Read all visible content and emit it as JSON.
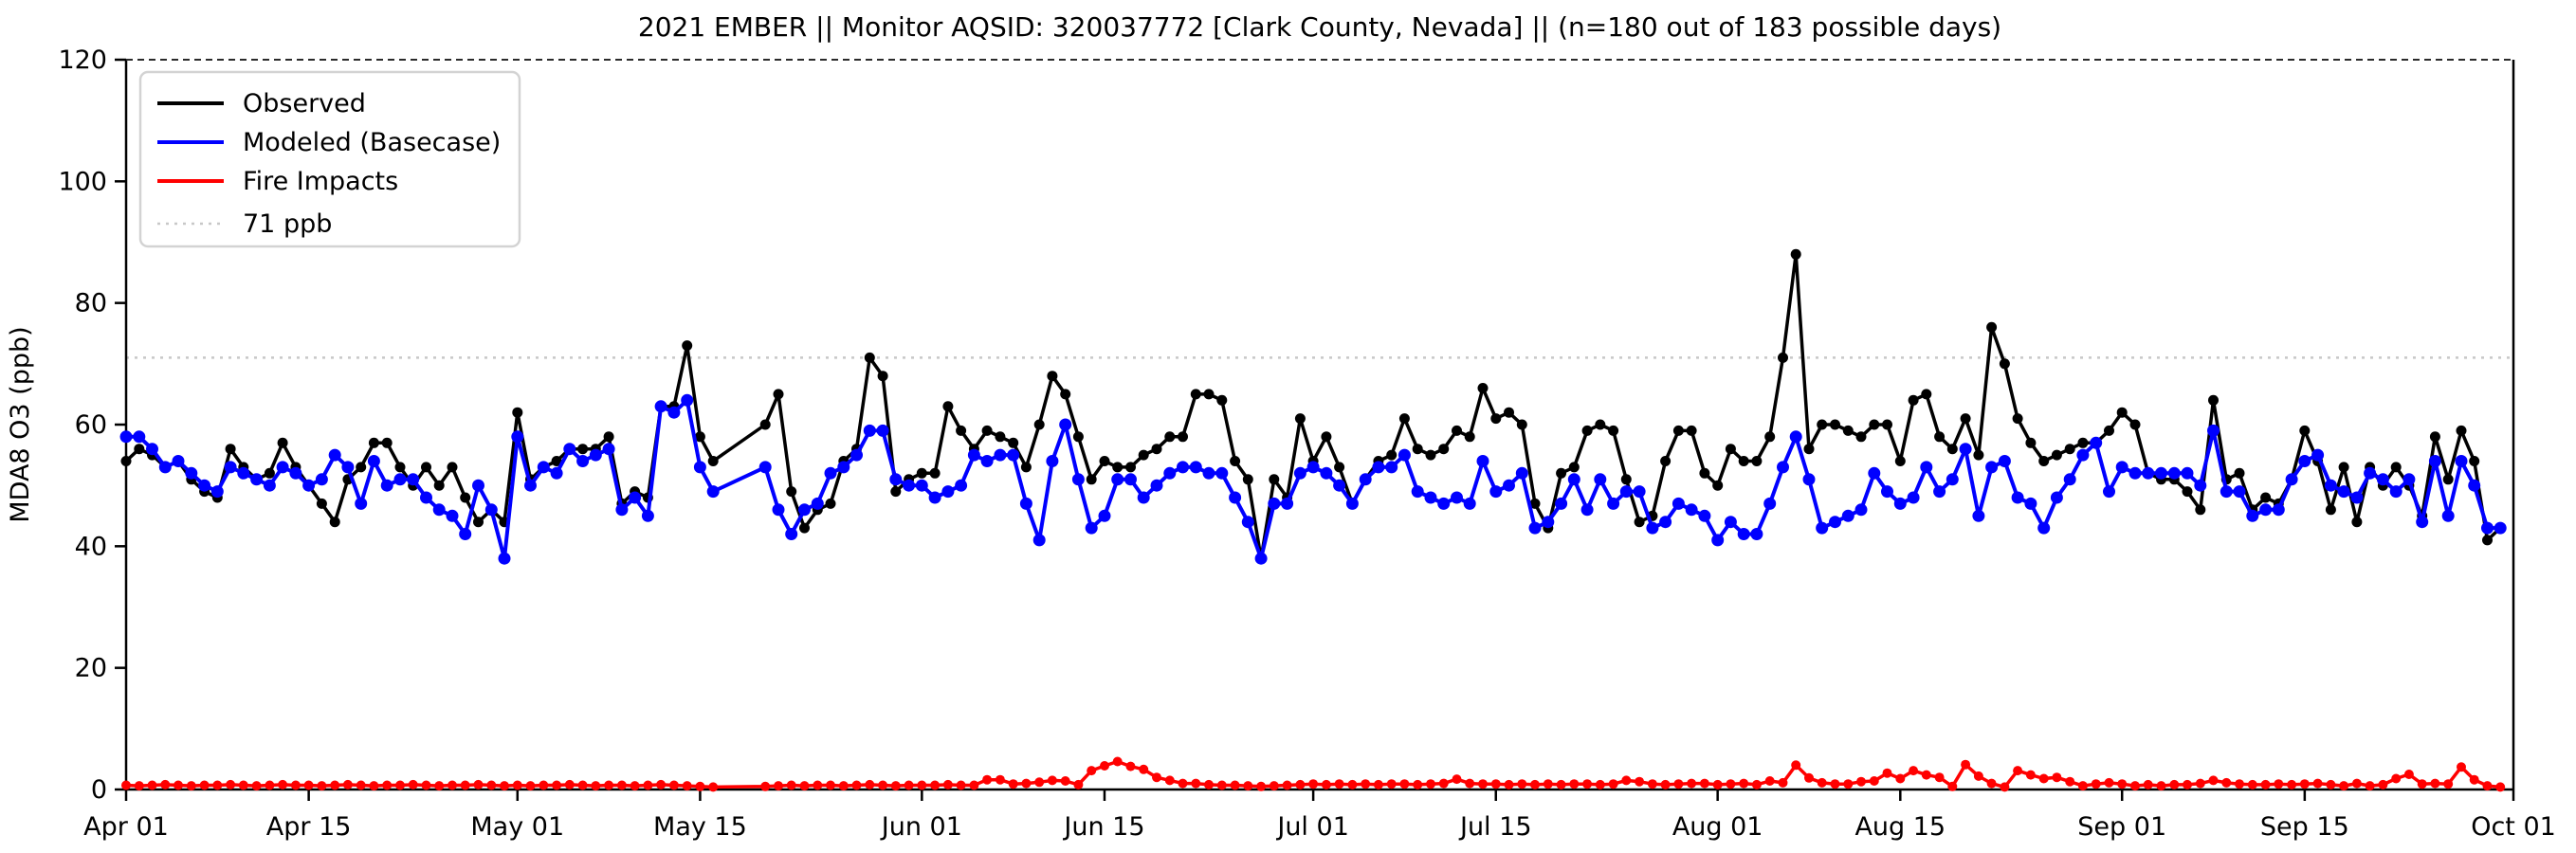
{
  "chart": {
    "title": "2021 EMBER || Monitor AQSID: 320037772 [Clark County, Nevada] || (n=180 out of 183 possible days)",
    "ylabel": "MDA8 O3 (ppb)",
    "legend": [
      {
        "label": "Observed",
        "color": "#000000",
        "style": "solid"
      },
      {
        "label": "Modeled (Basecase)",
        "color": "#0000ff",
        "style": "solid"
      },
      {
        "label": "Fire Impacts",
        "color": "#ff0000",
        "style": "solid"
      },
      {
        "label": "71 ppb",
        "color": "#c8c8c8",
        "style": "dotted"
      }
    ],
    "colors": {
      "observed": "#000000",
      "modeled": "#0000ff",
      "fire": "#ff0000",
      "threshold_line": "#c8c8c8",
      "top_border_dashed": "#2b2b2b",
      "legend_border": "#d3d3d3"
    },
    "yticks": [
      "0",
      "20",
      "40",
      "60",
      "80",
      "100",
      "120"
    ],
    "xtick_labels": [
      "Apr 01",
      "Apr 15",
      "May 01",
      "May 15",
      "Jun 01",
      "Jun 15",
      "Jul 01",
      "Jul 15",
      "Aug 01",
      "Aug 15",
      "Sep 01",
      "Sep 15",
      "Oct 01"
    ]
  },
  "chart_data": {
    "type": "line",
    "title": "2021 EMBER || Monitor AQSID: 320037772 [Clark County, Nevada] || (n=180 out of 183 possible days)",
    "xlabel": "",
    "ylabel": "MDA8 O3 (ppb)",
    "ylim": [
      0,
      120
    ],
    "yticks": [
      0,
      20,
      40,
      60,
      80,
      100,
      120
    ],
    "grid": false,
    "legend_position": "upper left",
    "x_daily_from": "2021-04-01",
    "n_days": 183,
    "n_observed_days": 180,
    "missing_dates": [
      "2021-05-17",
      "2021-05-18",
      "2021-05-19"
    ],
    "threshold_ppb": 71,
    "xticks": [
      {
        "label": "Apr 01",
        "day": 0
      },
      {
        "label": "Apr 15",
        "day": 14
      },
      {
        "label": "May 01",
        "day": 30
      },
      {
        "label": "May 15",
        "day": 44
      },
      {
        "label": "Jun 01",
        "day": 61
      },
      {
        "label": "Jun 15",
        "day": 75
      },
      {
        "label": "Jul 01",
        "day": 91
      },
      {
        "label": "Jul 15",
        "day": 105
      },
      {
        "label": "Aug 01",
        "day": 122
      },
      {
        "label": "Aug 15",
        "day": 136
      },
      {
        "label": "Sep 01",
        "day": 153
      },
      {
        "label": "Sep 15",
        "day": 167
      },
      {
        "label": "Oct 01",
        "day": 183
      }
    ],
    "series": [
      {
        "name": "Observed",
        "color": "#000000",
        "marker_radius": 5.5,
        "line_width": 3.5,
        "values": [
          54,
          56,
          55,
          53,
          54,
          51,
          49,
          48,
          56,
          53,
          51,
          52,
          57,
          53,
          50,
          47,
          44,
          51,
          53,
          57,
          57,
          53,
          50,
          53,
          50,
          53,
          48,
          44,
          46,
          44,
          62,
          51,
          53,
          54,
          56,
          56,
          56,
          58,
          47,
          49,
          48,
          63,
          63,
          73,
          58,
          54,
          null,
          null,
          null,
          60,
          65,
          49,
          43,
          46,
          47,
          54,
          56,
          71,
          68,
          49,
          51,
          52,
          52,
          63,
          59,
          56,
          59,
          58,
          57,
          53,
          60,
          68,
          65,
          58,
          51,
          54,
          53,
          53,
          55,
          56,
          58,
          58,
          65,
          65,
          64,
          54,
          51,
          38,
          51,
          48,
          61,
          54,
          58,
          53,
          47,
          51,
          54,
          55,
          61,
          56,
          55,
          56,
          59,
          58,
          66,
          61,
          62,
          60,
          47,
          43,
          52,
          53,
          59,
          60,
          59,
          51,
          44,
          45,
          54,
          59,
          59,
          52,
          50,
          56,
          54,
          54,
          58,
          71,
          88,
          56,
          60,
          60,
          59,
          58,
          60,
          60,
          54,
          64,
          65,
          58,
          56,
          61,
          55,
          76,
          70,
          61,
          57,
          54,
          55,
          56,
          57,
          57,
          59,
          62,
          60,
          52,
          51,
          51,
          49,
          46,
          64,
          51,
          52,
          46,
          48,
          47,
          51,
          59,
          54,
          46,
          53,
          44,
          53,
          50,
          53,
          50,
          45,
          58,
          51,
          59,
          54,
          41,
          43
        ]
      },
      {
        "name": "Modeled (Basecase)",
        "color": "#0000ff",
        "marker_radius": 6.5,
        "line_width": 4,
        "values": [
          58,
          58,
          56,
          53,
          54,
          52,
          50,
          49,
          53,
          52,
          51,
          50,
          53,
          52,
          50,
          51,
          55,
          53,
          47,
          54,
          50,
          51,
          51,
          48,
          46,
          45,
          42,
          50,
          46,
          38,
          58,
          50,
          53,
          52,
          56,
          54,
          55,
          56,
          46,
          48,
          45,
          63,
          62,
          64,
          53,
          49,
          null,
          null,
          null,
          53,
          46,
          42,
          46,
          47,
          52,
          53,
          55,
          59,
          59,
          51,
          50,
          50,
          48,
          49,
          50,
          55,
          54,
          55,
          55,
          47,
          41,
          54,
          60,
          51,
          43,
          45,
          51,
          51,
          48,
          50,
          52,
          53,
          53,
          52,
          52,
          48,
          44,
          38,
          47,
          47,
          52,
          53,
          52,
          50,
          47,
          51,
          53,
          53,
          55,
          49,
          48,
          47,
          48,
          47,
          54,
          49,
          50,
          52,
          43,
          44,
          47,
          51,
          46,
          51,
          47,
          49,
          49,
          43,
          44,
          47,
          46,
          45,
          41,
          44,
          42,
          42,
          47,
          53,
          58,
          51,
          43,
          44,
          45,
          46,
          52,
          49,
          47,
          48,
          53,
          49,
          51,
          56,
          45,
          53,
          54,
          48,
          47,
          43,
          48,
          51,
          55,
          57,
          49,
          53,
          52,
          52,
          52,
          52,
          52,
          50,
          59,
          49,
          49,
          45,
          46,
          46,
          51,
          54,
          55,
          50,
          49,
          48,
          52,
          51,
          49,
          51,
          44,
          54,
          45,
          54,
          50,
          43,
          43
        ]
      },
      {
        "name": "Fire Impacts",
        "color": "#ff0000",
        "marker_radius": 5,
        "line_width": 3.5,
        "values": [
          0.7,
          0.6,
          0.7,
          0.8,
          0.7,
          0.6,
          0.7,
          0.7,
          0.8,
          0.7,
          0.6,
          0.7,
          0.8,
          0.7,
          0.7,
          0.6,
          0.7,
          0.8,
          0.7,
          0.6,
          0.7,
          0.7,
          0.8,
          0.7,
          0.6,
          0.7,
          0.7,
          0.8,
          0.7,
          0.6,
          0.7,
          0.6,
          0.7,
          0.7,
          0.8,
          0.7,
          0.6,
          0.7,
          0.7,
          0.6,
          0.7,
          0.8,
          0.7,
          0.6,
          0.5,
          0.4,
          null,
          null,
          null,
          0.5,
          0.6,
          0.7,
          0.6,
          0.7,
          0.7,
          0.6,
          0.7,
          0.8,
          0.7,
          0.6,
          0.7,
          0.7,
          0.7,
          0.8,
          0.7,
          0.7,
          1.6,
          1.6,
          0.9,
          1.0,
          1.2,
          1.5,
          1.4,
          0.8,
          3.1,
          3.9,
          4.6,
          3.8,
          3.3,
          2.0,
          1.5,
          1.0,
          1.0,
          0.8,
          0.7,
          0.7,
          0.6,
          0.5,
          0.6,
          0.7,
          0.8,
          0.9,
          0.8,
          0.9,
          0.8,
          0.9,
          0.8,
          0.9,
          0.9,
          0.8,
          0.9,
          1.0,
          1.7,
          1.0,
          0.9,
          0.9,
          0.8,
          0.9,
          0.8,
          0.9,
          0.8,
          0.9,
          0.9,
          0.8,
          0.9,
          1.5,
          1.3,
          0.9,
          0.8,
          0.9,
          1.0,
          1.0,
          0.8,
          0.9,
          1.0,
          0.8,
          1.4,
          1.1,
          4.0,
          1.9,
          1.1,
          0.9,
          0.9,
          1.3,
          1.4,
          2.7,
          1.8,
          3.1,
          2.4,
          2.0,
          0.5,
          4.1,
          2.2,
          1.0,
          0.4,
          3.1,
          2.4,
          1.8,
          2.0,
          1.3,
          0.6,
          0.9,
          1.1,
          0.9,
          0.6,
          0.8,
          0.6,
          0.8,
          0.8,
          1.0,
          1.5,
          1.1,
          0.9,
          0.8,
          0.8,
          0.9,
          0.8,
          0.9,
          1.0,
          0.8,
          0.6,
          1.0,
          0.6,
          0.8,
          1.8,
          2.5,
          0.9,
          1.0,
          0.9,
          3.7,
          1.6,
          0.6,
          0.4
        ]
      }
    ]
  }
}
